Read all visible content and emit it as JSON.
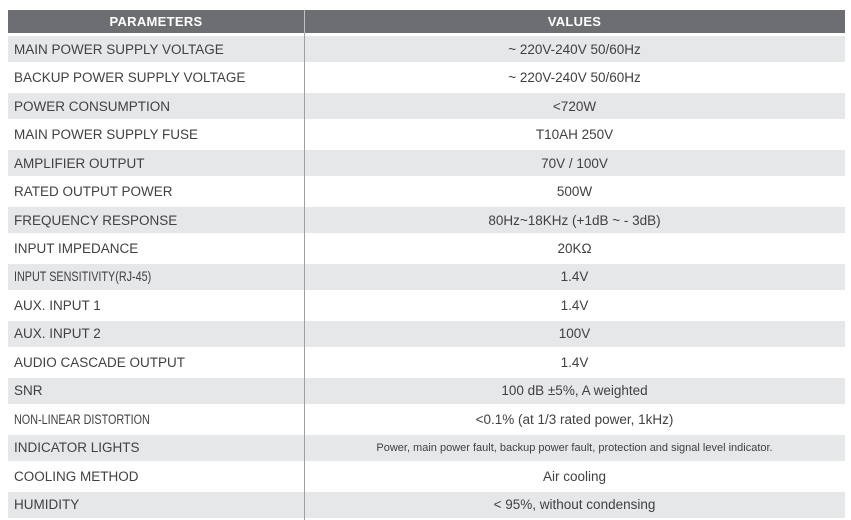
{
  "header": {
    "parameters": "PARAMETERS",
    "values": "VALUES"
  },
  "colors": {
    "header_bg": "#6d6e71",
    "header_text": "#ffffff",
    "row_alt_bg": "#e6e7e8",
    "text": "#414042",
    "divider": "#9d9fa2"
  },
  "table": {
    "rows": [
      {
        "param": "MAIN POWER SUPPLY VOLTAGE",
        "value": "~ 220V-240V 50/60Hz"
      },
      {
        "param": "BACKUP POWER SUPPLY VOLTAGE",
        "value": "~ 220V-240V 50/60Hz"
      },
      {
        "param": "POWER CONSUMPTION",
        "value": "<720W"
      },
      {
        "param": "MAIN POWER SUPPLY FUSE",
        "value": "T10AH 250V"
      },
      {
        "param": "AMPLIFIER OUTPUT",
        "value": "70V / 100V"
      },
      {
        "param": "RATED OUTPUT POWER",
        "value": "500W"
      },
      {
        "param": "FREQUENCY RESPONSE",
        "value": "80Hz~18KHz (+1dB ~ - 3dB)"
      },
      {
        "param": "INPUT IMPEDANCE",
        "value": "20KΩ"
      },
      {
        "param": "INPUT SENSITIVITY(RJ-45)",
        "value": "1.4V"
      },
      {
        "param": "AUX. INPUT 1",
        "value": "1.4V"
      },
      {
        "param": "AUX. INPUT 2",
        "value": "100V"
      },
      {
        "param": "AUDIO CASCADE OUTPUT",
        "value": "1.4V"
      },
      {
        "param": "SNR",
        "value": "100 dB ±5%, A weighted"
      },
      {
        "param": "NON-LINEAR DISTORTION",
        "value": "<0.1% (at 1/3 rated power, 1kHz)"
      },
      {
        "param": "INDICATOR LIGHTS",
        "value": "Power, main power fault, backup power fault, protection and signal level indicator."
      },
      {
        "param": "COOLING METHOD",
        "value": "Air cooling"
      },
      {
        "param": "HUMIDITY",
        "value": "< 95%, without condensing"
      }
    ]
  }
}
